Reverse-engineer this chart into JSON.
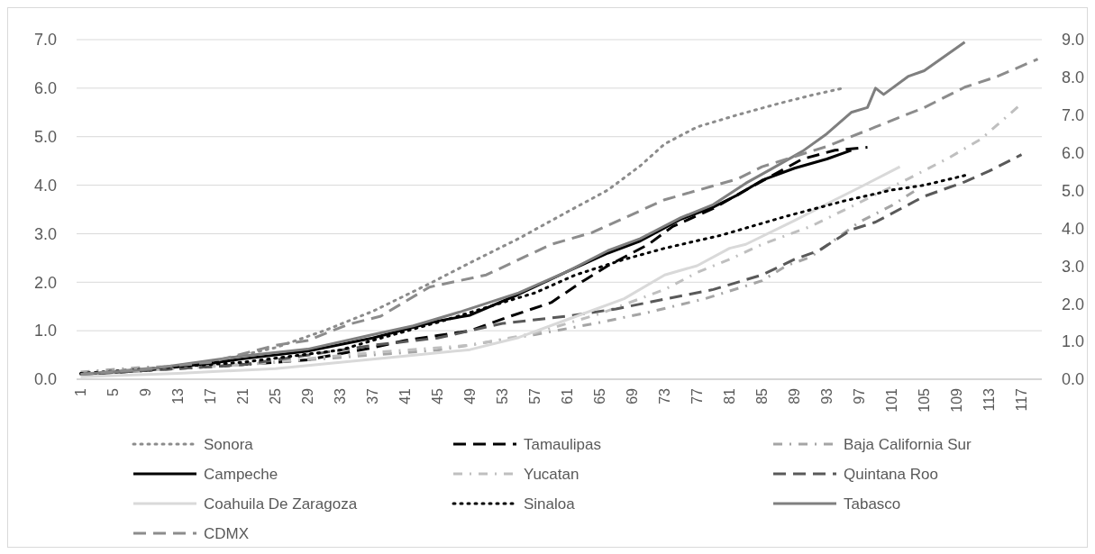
{
  "chart_data": {
    "type": "line",
    "xlim": [
      0.5,
      119.5
    ],
    "xticks": [
      1,
      5,
      9,
      13,
      17,
      21,
      25,
      29,
      33,
      37,
      41,
      45,
      49,
      53,
      57,
      61,
      65,
      69,
      73,
      77,
      81,
      85,
      89,
      93,
      97,
      101,
      105,
      109,
      113,
      117
    ],
    "ylim": [
      0,
      7
    ],
    "yticks": [
      {
        "value": 0,
        "label": "0.0"
      },
      {
        "value": 1,
        "label": "1.0"
      },
      {
        "value": 2,
        "label": "2.0"
      },
      {
        "value": 3,
        "label": "3.0"
      },
      {
        "value": 4,
        "label": "4.0"
      },
      {
        "value": 5,
        "label": "5.0"
      },
      {
        "value": 6,
        "label": "6.0"
      },
      {
        "value": 7,
        "label": "7.0"
      }
    ],
    "y2lim": [
      0,
      9
    ],
    "y2ticks": [
      {
        "value": 0,
        "label": "0.0"
      },
      {
        "value": 1,
        "label": "1.0"
      },
      {
        "value": 2,
        "label": "2.0"
      },
      {
        "value": 3,
        "label": "3.0"
      },
      {
        "value": 4,
        "label": "4.0"
      },
      {
        "value": 5,
        "label": "5.0"
      },
      {
        "value": 6,
        "label": "6.0"
      },
      {
        "value": 7,
        "label": "7.0"
      },
      {
        "value": 8,
        "label": "8.0"
      },
      {
        "value": 9,
        "label": "9.0"
      }
    ],
    "grid": "y",
    "legend": "bottom",
    "series": [
      {
        "name": "Sonora",
        "color": "#8c8c8c",
        "line_style": "dotted",
        "x": [
          1,
          9,
          17,
          25,
          31,
          37,
          44,
          49,
          55,
          61,
          66,
          70,
          73,
          77,
          82,
          87,
          91,
          95
        ],
        "values": [
          0.1,
          0.2,
          0.35,
          0.65,
          1.0,
          1.4,
          1.97,
          2.4,
          2.9,
          3.45,
          3.9,
          4.4,
          4.85,
          5.2,
          5.45,
          5.68,
          5.85,
          6.0
        ]
      },
      {
        "name": "Tamaulipas",
        "color": "#000000",
        "line_style": "dashed",
        "x": [
          1,
          21,
          29,
          37,
          41,
          45,
          49,
          54,
          59,
          63,
          66,
          71,
          74,
          79,
          83,
          90,
          94,
          98
        ],
        "values": [
          0.1,
          0.3,
          0.4,
          0.65,
          0.8,
          0.9,
          1.0,
          1.3,
          1.58,
          2.03,
          2.34,
          2.78,
          3.15,
          3.52,
          3.9,
          4.54,
          4.72,
          4.78
        ]
      },
      {
        "name": "Baja California Sur",
        "color": "#a5a5a5",
        "line_style": "dashdot",
        "x": [
          1,
          9,
          21,
          37,
          45,
          57,
          65,
          71,
          78,
          82,
          85,
          88,
          91,
          97,
          101,
          104
        ],
        "values": [
          0.15,
          0.25,
          0.3,
          0.5,
          0.6,
          0.92,
          1.17,
          1.38,
          1.66,
          1.87,
          2.03,
          2.34,
          2.52,
          3.24,
          3.58,
          3.9
        ]
      },
      {
        "name": "Campeche",
        "color": "#000000",
        "line_style": "solid",
        "x": [
          1,
          9,
          17,
          21,
          29,
          37,
          45,
          49,
          55,
          61,
          66,
          70,
          75,
          79,
          82,
          85,
          89,
          93,
          96
        ],
        "values": [
          0.1,
          0.18,
          0.33,
          0.42,
          0.58,
          0.85,
          1.2,
          1.32,
          1.75,
          2.22,
          2.6,
          2.85,
          3.3,
          3.55,
          3.8,
          4.1,
          4.35,
          4.54,
          4.72
        ]
      },
      {
        "name": "Yucatan",
        "color": "#bfbfbf",
        "line_style": "dashdot",
        "x": [
          1,
          21,
          37,
          49,
          57,
          65,
          73,
          77,
          81,
          85,
          91,
          97,
          103,
          108,
          112,
          117
        ],
        "values": [
          0.1,
          0.3,
          0.55,
          0.7,
          0.95,
          1.35,
          1.85,
          2.2,
          2.47,
          2.78,
          3.15,
          3.64,
          4.13,
          4.56,
          4.95,
          5.68
        ]
      },
      {
        "name": "Quintana Roo",
        "color": "#595959",
        "line_style": "dashed",
        "x": [
          1,
          21,
          37,
          45,
          49,
          53,
          61,
          67,
          73,
          79,
          85,
          89,
          92,
          96,
          99,
          105,
          110,
          113,
          117
        ],
        "values": [
          0.1,
          0.3,
          0.7,
          0.85,
          1.0,
          1.15,
          1.3,
          1.45,
          1.65,
          1.85,
          2.15,
          2.47,
          2.65,
          3.08,
          3.24,
          3.77,
          4.07,
          4.29,
          4.63
        ]
      },
      {
        "name": "Coahuila De Zaragoza",
        "color": "#d9d9d9",
        "line_style": "solid",
        "x": [
          1,
          13,
          25,
          33,
          41,
          49,
          55,
          61,
          68,
          73,
          77,
          81,
          83,
          89,
          94,
          97,
          102
        ],
        "values": [
          0.05,
          0.12,
          0.22,
          0.35,
          0.48,
          0.61,
          0.86,
          1.23,
          1.66,
          2.15,
          2.34,
          2.7,
          2.78,
          3.27,
          3.7,
          3.95,
          4.38
        ]
      },
      {
        "name": "Sinaloa",
        "color": "#000000",
        "line_style": "dotted",
        "x": [
          1,
          21,
          33,
          37,
          46,
          51,
          57,
          62,
          68,
          73,
          80,
          88,
          95,
          101,
          105,
          110
        ],
        "values": [
          0.12,
          0.35,
          0.6,
          0.8,
          1.22,
          1.48,
          1.78,
          2.15,
          2.47,
          2.7,
          2.97,
          3.36,
          3.67,
          3.9,
          4.0,
          4.2
        ]
      },
      {
        "name": "Tabasco",
        "color": "#7f7f7f",
        "line_style": "solid",
        "x": [
          1,
          9,
          21,
          29,
          37,
          42,
          48,
          55,
          61,
          66,
          70,
          75,
          79,
          83,
          86,
          90,
          93,
          96,
          98,
          99,
          100,
          103,
          105,
          110
        ],
        "values": [
          0.1,
          0.2,
          0.48,
          0.62,
          0.92,
          1.1,
          1.4,
          1.78,
          2.22,
          2.65,
          2.9,
          3.33,
          3.6,
          4.04,
          4.32,
          4.7,
          5.06,
          5.5,
          5.6,
          6.0,
          5.87,
          6.24,
          6.36,
          6.95
        ]
      },
      {
        "name": "CDMX",
        "color": "#8c8c8c",
        "line_style": "dashed",
        "x": [
          1,
          9,
          17,
          25,
          29,
          34,
          38,
          44,
          51,
          59,
          64,
          73,
          82,
          85,
          93,
          99,
          105,
          110,
          114,
          119
        ],
        "values": [
          0.1,
          0.22,
          0.35,
          0.7,
          0.8,
          1.13,
          1.3,
          1.9,
          2.15,
          2.78,
          3.02,
          3.7,
          4.13,
          4.38,
          4.8,
          5.2,
          5.6,
          6.02,
          6.24,
          6.6
        ]
      }
    ]
  }
}
